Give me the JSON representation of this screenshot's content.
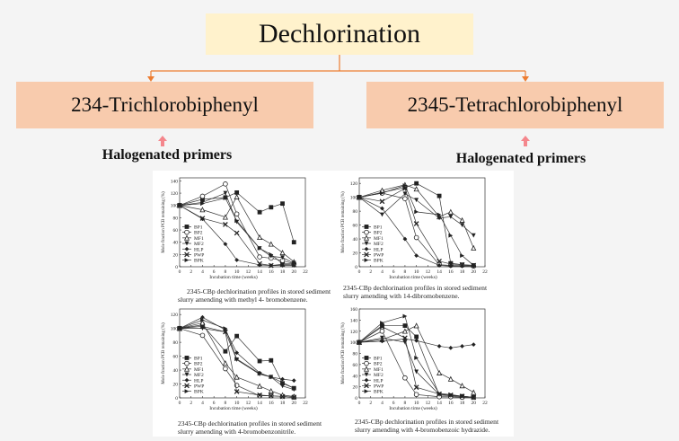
{
  "diagram": {
    "title": "Dechlorination",
    "branches": [
      {
        "label": "234-Trichlorobiphenyl",
        "note": "Halogenated primers"
      },
      {
        "label": "2345-Tetrachlorobiphenyl",
        "note": "Halogenated primers"
      }
    ],
    "colors": {
      "title_box": "#fff2cc",
      "branch_box": "#f8cbad",
      "connector": "#ed7d31",
      "up_arrow": "#f4868c"
    }
  },
  "chart_data": [
    {
      "type": "line",
      "caption": [
        "2345-CBp dechlorination profiles in stored sediment",
        "slurry amending with methyl 4- bromobenzene."
      ],
      "xlabel": "Incubation time (weeks)",
      "ylabel": "Mole fraction PCB remaining (%)",
      "xlim": [
        0,
        22
      ],
      "ylim": [
        0,
        145
      ],
      "xticks": [
        0,
        2,
        4,
        6,
        8,
        10,
        12,
        14,
        16,
        18,
        20,
        22
      ],
      "yticks": [
        0,
        20,
        40,
        60,
        80,
        100,
        120,
        140
      ],
      "legend": "left",
      "x": [
        0,
        4,
        8,
        10,
        14,
        16,
        18,
        20
      ],
      "series": [
        {
          "name": "BP1",
          "marker": "square-filled",
          "values": [
            100,
            110,
            113,
            121,
            89,
            97,
            103,
            40
          ]
        },
        {
          "name": "BP2",
          "marker": "circle-open",
          "values": [
            100,
            115,
            135,
            86,
            16,
            14,
            10,
            5
          ]
        },
        {
          "name": "MF1",
          "marker": "triangle-open",
          "values": [
            100,
            93,
            81,
            114,
            48,
            37,
            23,
            8
          ]
        },
        {
          "name": "MF2",
          "marker": "triangle-down-filled",
          "values": [
            100,
            105,
            120,
            73,
            30,
            17,
            15,
            6
          ]
        },
        {
          "name": "HLP",
          "marker": "diamond-filled",
          "values": [
            100,
            78,
            37,
            11,
            3,
            2,
            2,
            2
          ]
        },
        {
          "name": "PWP",
          "marker": "x",
          "values": [
            100,
            79,
            69,
            55,
            5,
            2,
            4,
            3
          ]
        },
        {
          "name": "BPK",
          "marker": "triangle-right-filled",
          "values": [
            100,
            103,
            112,
            75,
            30,
            20,
            5,
            5
          ]
        }
      ]
    },
    {
      "type": "line",
      "caption": [
        "2345-CBp dechlorination profiles in stored sediment",
        "slurry amending with 14-dibromobenzene."
      ],
      "xlabel": "Incubation time (weeks)",
      "ylabel": "Mole fraction PCB remaining (%)",
      "xlim": [
        0,
        22
      ],
      "ylim": [
        0,
        128
      ],
      "xticks": [
        0,
        2,
        4,
        6,
        8,
        10,
        12,
        14,
        16,
        18,
        20,
        22
      ],
      "yticks": [
        0,
        20,
        40,
        60,
        80,
        100,
        120
      ],
      "legend": "left",
      "x": [
        0,
        4,
        8,
        10,
        14,
        16,
        18,
        20
      ],
      "series": [
        {
          "name": "BP1",
          "marker": "square-filled",
          "values": [
            100,
            107,
            114,
            120,
            102,
            5,
            3,
            2
          ]
        },
        {
          "name": "BP2",
          "marker": "circle-open",
          "values": [
            100,
            106,
            98,
            42,
            3,
            2,
            2,
            1
          ]
        },
        {
          "name": "MF1",
          "marker": "triangle-open",
          "values": [
            100,
            110,
            118,
            112,
            72,
            79,
            67,
            27
          ]
        },
        {
          "name": "MF2",
          "marker": "triangle-down-filled",
          "values": [
            100,
            75,
            105,
            96,
            70,
            72,
            60,
            45
          ]
        },
        {
          "name": "HLP",
          "marker": "diamond-filled",
          "values": [
            100,
            84,
            40,
            16,
            2,
            1,
            1,
            1
          ]
        },
        {
          "name": "PWP",
          "marker": "x",
          "values": [
            100,
            94,
            113,
            62,
            8,
            4,
            3,
            2
          ]
        },
        {
          "name": "BPK",
          "marker": "triangle-right-filled",
          "values": [
            100,
            106,
            117,
            79,
            75,
            45,
            16,
            2
          ]
        }
      ]
    },
    {
      "type": "line",
      "caption": [
        "2345-CBp dechlorination profiles in stored sediment",
        "slurry amending with 4-bromobenzonitrile."
      ],
      "xlabel": "Incubation time (weeks)",
      "ylabel": "Mole fraction PCB remaining (%)",
      "xlim": [
        0,
        22
      ],
      "ylim": [
        0,
        128
      ],
      "xticks": [
        0,
        2,
        4,
        6,
        8,
        10,
        12,
        14,
        16,
        18,
        20,
        22
      ],
      "yticks": [
        0,
        20,
        40,
        60,
        80,
        100,
        120
      ],
      "legend": "left",
      "x": [
        0,
        4,
        8,
        10,
        14,
        16,
        18,
        20
      ],
      "series": [
        {
          "name": "BP1",
          "marker": "square-filled",
          "values": [
            100,
            105,
            67,
            89,
            53,
            54,
            21,
            14
          ]
        },
        {
          "name": "BP2",
          "marker": "circle-open",
          "values": [
            100,
            90,
            42,
            18,
            3,
            3,
            2,
            1
          ]
        },
        {
          "name": "MF1",
          "marker": "triangle-open",
          "values": [
            100,
            108,
            50,
            30,
            17,
            10,
            4,
            2
          ]
        },
        {
          "name": "MF2",
          "marker": "triangle-down-filled",
          "values": [
            100,
            100,
            95,
            55,
            34,
            30,
            17,
            12
          ]
        },
        {
          "name": "HLP",
          "marker": "diamond-filled",
          "values": [
            100,
            116,
            98,
            65,
            36,
            30,
            27,
            25
          ]
        },
        {
          "name": "PWP",
          "marker": "x",
          "values": [
            100,
            103,
            95,
            9,
            4,
            3,
            2,
            1
          ]
        },
        {
          "name": "BPK",
          "marker": "triangle-right-filled",
          "values": [
            100,
            112,
            100,
            56,
            35,
            30,
            22,
            14
          ]
        }
      ]
    },
    {
      "type": "line",
      "caption": [
        "2345-CBp dechlorination profiles in stored sediment",
        "slurry amending with 4-bromobenzoic hydrazide."
      ],
      "xlabel": "Incubation time (weeks)",
      "ylabel": "Mole fraction PCB remaining (%)",
      "xlim": [
        0,
        22
      ],
      "ylim": [
        0,
        160
      ],
      "xticks": [
        0,
        2,
        4,
        6,
        8,
        10,
        12,
        14,
        16,
        18,
        20,
        22
      ],
      "yticks": [
        0,
        20,
        40,
        60,
        80,
        100,
        120,
        140,
        160
      ],
      "legend": "left",
      "x": [
        0,
        4,
        8,
        10,
        14,
        16,
        18,
        20
      ],
      "series": [
        {
          "name": "BP1",
          "marker": "square-filled",
          "values": [
            100,
            130,
            130,
            110,
            5,
            4,
            2,
            1
          ]
        },
        {
          "name": "BP2",
          "marker": "circle-open",
          "values": [
            100,
            120,
            36,
            6,
            2,
            2,
            1,
            1
          ]
        },
        {
          "name": "MF1",
          "marker": "triangle-open",
          "values": [
            100,
            105,
            120,
            130,
            45,
            34,
            22,
            10
          ]
        },
        {
          "name": "MF2",
          "marker": "triangle-down-filled",
          "values": [
            100,
            108,
            100,
            47,
            6,
            4,
            3,
            1
          ]
        },
        {
          "name": "HLP",
          "marker": "diamond-filled",
          "values": [
            100,
            102,
            106,
            103,
            93,
            90,
            93,
            96
          ]
        },
        {
          "name": "PWP",
          "marker": "x",
          "values": [
            100,
            128,
            108,
            19,
            7,
            5,
            3,
            1
          ]
        },
        {
          "name": "BPK",
          "marker": "triangle-right-filled",
          "values": [
            100,
            135,
            147,
            72,
            8,
            6,
            3,
            1
          ]
        }
      ]
    }
  ]
}
